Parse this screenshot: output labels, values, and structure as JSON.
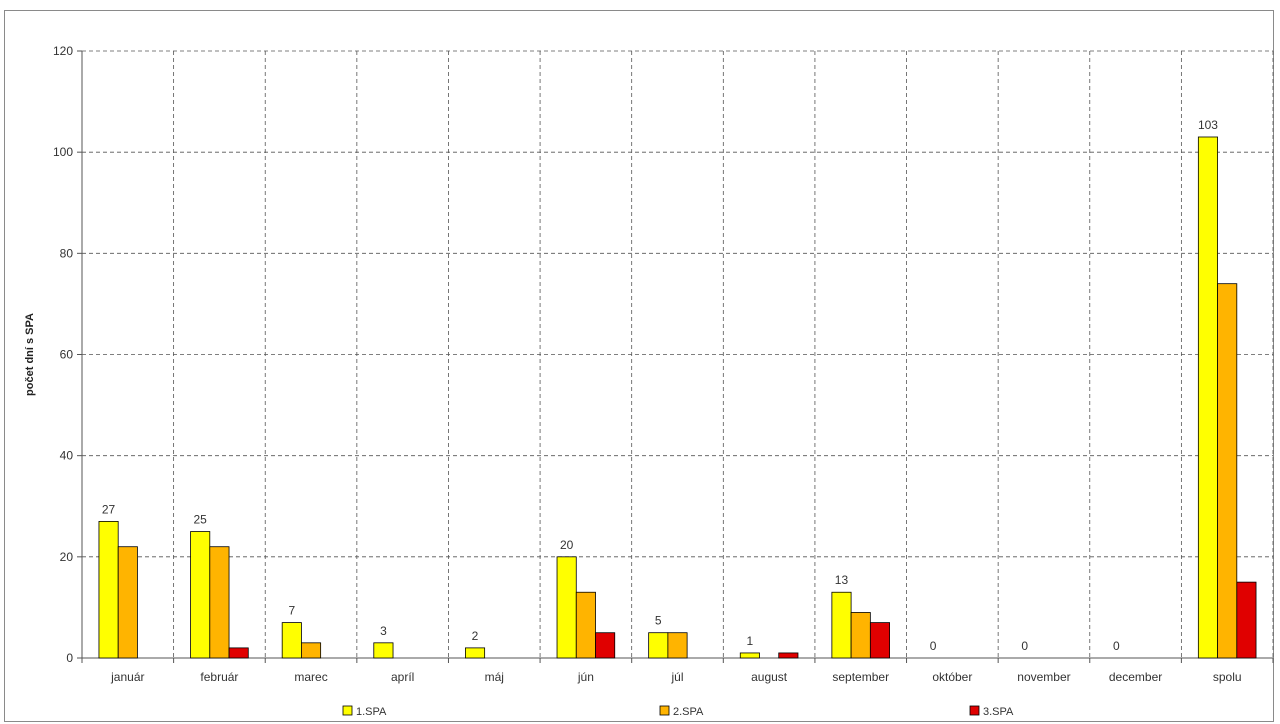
{
  "chart_data": {
    "type": "bar",
    "title": "",
    "xlabel": "",
    "ylabel": "počet dní s SPA",
    "ylim": [
      0,
      120
    ],
    "yticks": [
      0,
      20,
      40,
      60,
      80,
      100,
      120
    ],
    "grid": true,
    "legend_position": "bottom",
    "categories": [
      "január",
      "február",
      "marec",
      "apríl",
      "máj",
      "jún",
      "júl",
      "august",
      "september",
      "október",
      "november",
      "december",
      "spolu"
    ],
    "series": [
      {
        "name": "1.SPA",
        "color": "#ffff00",
        "values": [
          27,
          25,
          7,
          3,
          2,
          20,
          5,
          1,
          13,
          0,
          0,
          0,
          103
        ]
      },
      {
        "name": "2.SPA",
        "color": "#ffb400",
        "values": [
          22,
          22,
          3,
          0,
          0,
          13,
          5,
          0,
          9,
          0,
          0,
          0,
          74
        ]
      },
      {
        "name": "3.SPA",
        "color": "#e00000",
        "values": [
          0,
          2,
          0,
          0,
          0,
          5,
          0,
          1,
          7,
          0,
          0,
          0,
          15
        ]
      }
    ],
    "data_labels": {
      "series": "1.SPA",
      "values": [
        "27",
        "25",
        "7",
        "3",
        "2",
        "20",
        "5",
        "1",
        "13",
        "0",
        "0",
        "0",
        "103"
      ]
    }
  }
}
